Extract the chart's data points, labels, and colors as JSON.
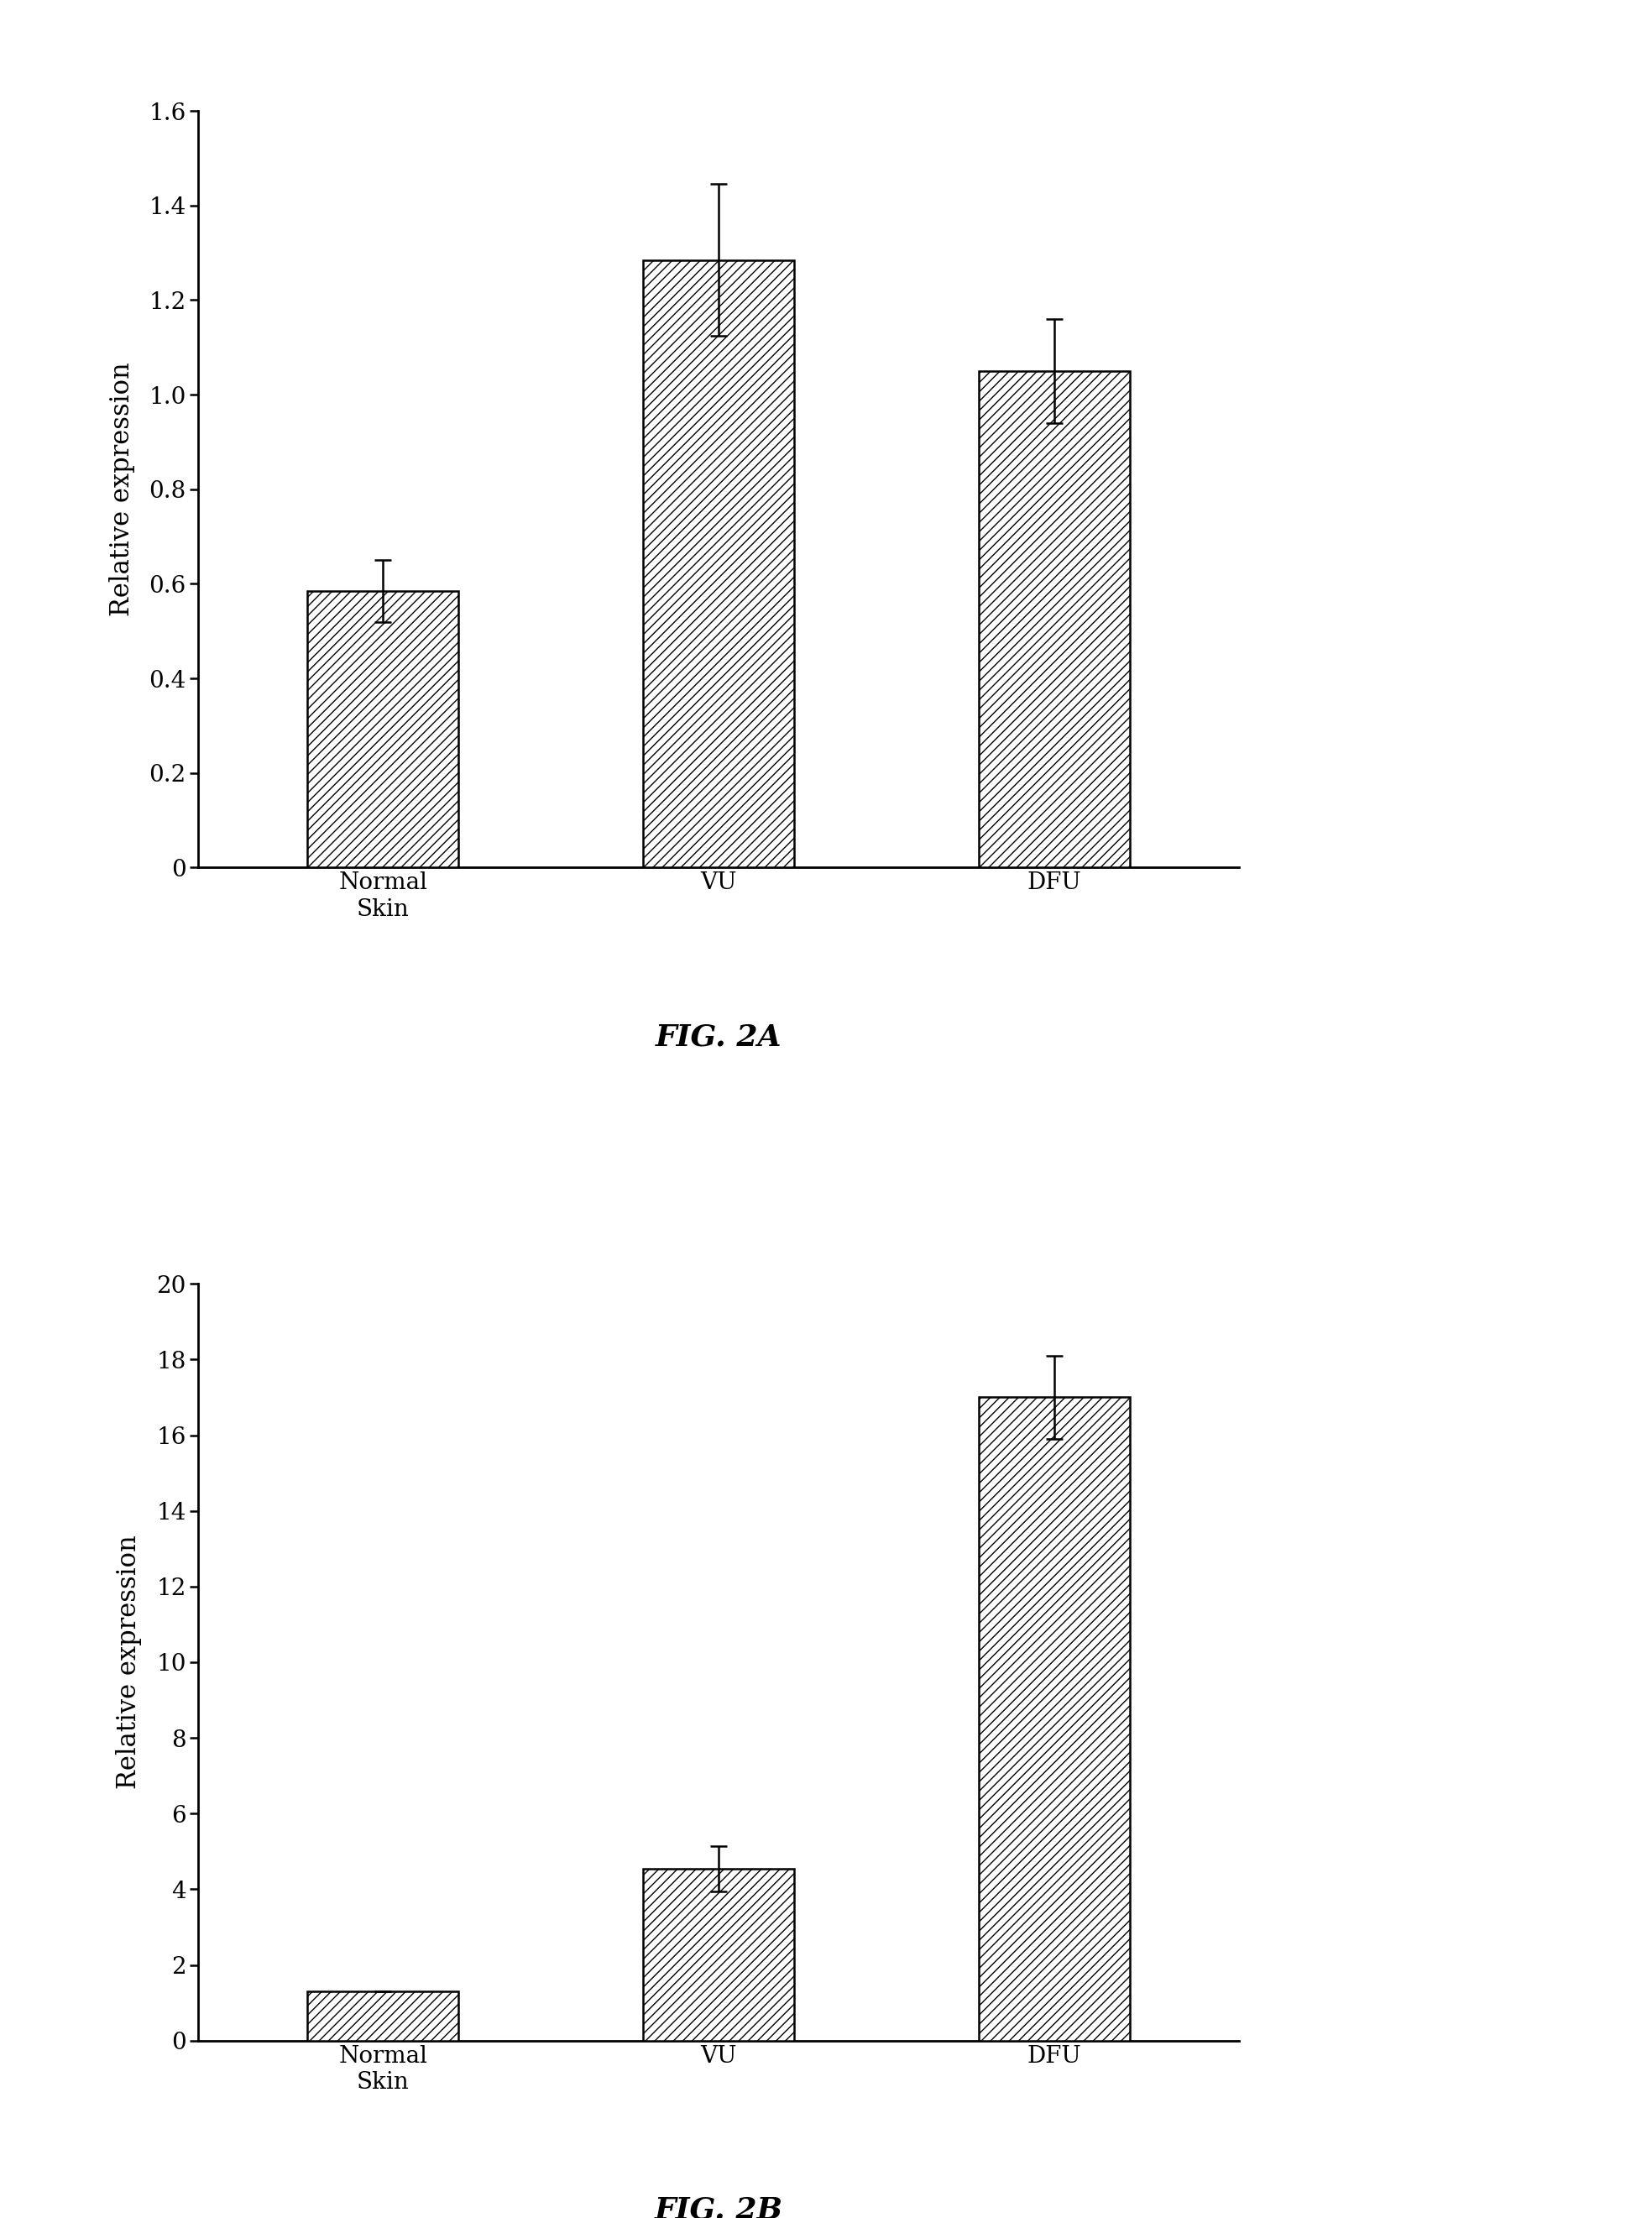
{
  "fig2a": {
    "categories": [
      "Normal\nSkin",
      "VU",
      "DFU"
    ],
    "values": [
      0.585,
      1.285,
      1.05
    ],
    "errors": [
      0.065,
      0.16,
      0.11
    ],
    "ylim": [
      0,
      1.6
    ],
    "yticks": [
      0,
      0.2,
      0.4,
      0.6,
      0.8,
      1.0,
      1.2,
      1.4,
      1.6
    ],
    "ytick_labels": [
      "0",
      "0.2",
      "0.4",
      "0.6",
      "0.8",
      "1.0",
      "1.2",
      "1.4",
      "1.6"
    ],
    "ylabel": "Relative expression",
    "caption": "FIG. 2A"
  },
  "fig2b": {
    "categories": [
      "Normal\nSkin",
      "VU",
      "DFU"
    ],
    "values": [
      1.3,
      4.55,
      17.0
    ],
    "errors": [
      0.0,
      0.6,
      1.1
    ],
    "ylim": [
      0,
      20
    ],
    "yticks": [
      0,
      2,
      4,
      6,
      8,
      10,
      12,
      14,
      16,
      18,
      20
    ],
    "ytick_labels": [
      "0",
      "2",
      "4",
      "6",
      "8",
      "10",
      "12",
      "14",
      "16",
      "18",
      "20"
    ],
    "ylabel": "Relative expression",
    "caption": "FIG. 2B"
  },
  "hatch_pattern": "///",
  "bar_color": "white",
  "bar_edgecolor": "black",
  "bar_linewidth": 1.8,
  "bar_width": 0.45,
  "error_capsize": 7,
  "error_linewidth": 1.8,
  "error_color": "black",
  "background_color": "white",
  "axis_linewidth": 2.0,
  "tick_fontsize": 20,
  "ylabel_fontsize": 22,
  "caption_fontsize": 26,
  "xticklabel_fontsize": 20
}
